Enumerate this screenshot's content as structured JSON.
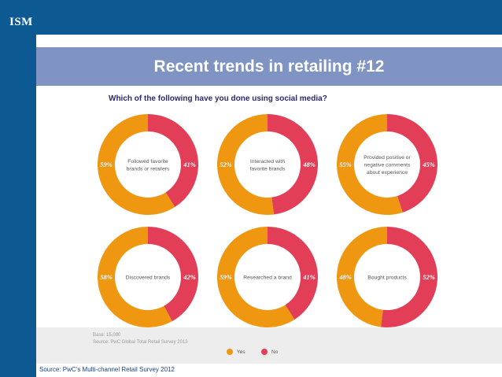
{
  "logo": "ISM",
  "title": "Recent trends in retailing #12",
  "question": "Which of the following have you done using social media?",
  "base": "Base: 15,080",
  "source_note": "Source: PwC Global Total Retail Survey 2013",
  "legend": {
    "yes": "Yes",
    "no": "No"
  },
  "footer_source": "Source: PwC’s Multi-channel Retail Survey 2012",
  "colors": {
    "yes": "#ef9711",
    "no": "#e33e57"
  },
  "chart_data": [
    {
      "type": "pie",
      "title": "Followed favorite brands or retailers",
      "yes": 59,
      "no": 41,
      "labels": {
        "yes": "59%",
        "no": "41%"
      }
    },
    {
      "type": "pie",
      "title": "Interacted with favorite brands",
      "yes": 52,
      "no": 48,
      "labels": {
        "yes": "52%",
        "no": "48%"
      }
    },
    {
      "type": "pie",
      "title": "Provided positive or negative comments about experience",
      "yes": 55,
      "no": 45,
      "labels": {
        "yes": "55%",
        "no": "45%"
      }
    },
    {
      "type": "pie",
      "title": "Discovered brands",
      "yes": 58,
      "no": 42,
      "labels": {
        "yes": "58%",
        "no": "42%"
      }
    },
    {
      "type": "pie",
      "title": "Researched a brand",
      "yes": 59,
      "no": 41,
      "labels": {
        "yes": "59%",
        "no": "41%"
      }
    },
    {
      "type": "pie",
      "title": "Bought products",
      "yes": 48,
      "no": 52,
      "labels": {
        "yes": "48%",
        "no": "52%"
      }
    }
  ]
}
